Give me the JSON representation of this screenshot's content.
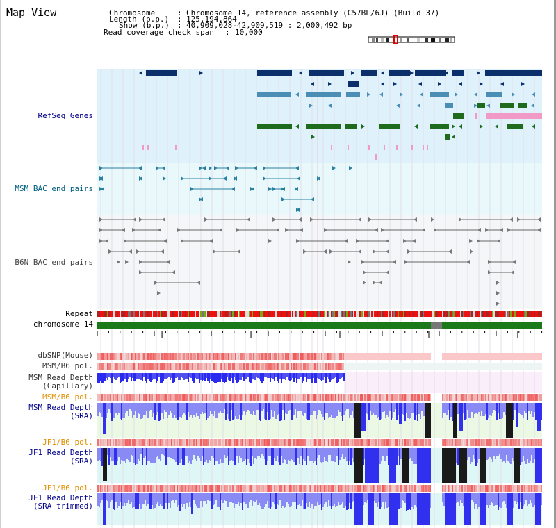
{
  "header": {
    "title": "Map View",
    "chromosome_key": "Chromosome",
    "chromosome_value": "Chromosome 14, reference assembly (C57BL/6J) (Build 37)",
    "length_key": "Length (b.p.)",
    "length_value": "125,194,864",
    "show_key": "Show (b.p.)",
    "show_value": "40,909,028-42,909,519 : 2,000,492 bp",
    "coverage_key": "Read coverage check span",
    "coverage_value": "10,000"
  },
  "tracks": {
    "refseq": "RefSeq Genes",
    "msm_bac": "MSM BAC end pairs",
    "b6n_bac": "B6N BAC end pairs",
    "repeat": "Repeat",
    "chromosome": "chromosome 14",
    "dbsnp": "dbSNP(Mouse)",
    "msm_b6_pol": "MSM/B6 pol.",
    "msm_read_depth_cap_1": "MSM Read Depth",
    "msm_read_depth_cap_2": "(Capillary)",
    "msm_b6_pol_2": "MSM/B6 pol.",
    "msm_read_depth_sra_1": "MSM Read Depth",
    "msm_read_depth_sra_2": "(SRA)",
    "jf1_b6_pol": "JF1/B6 pol.",
    "jf1_read_depth_sra_1": "JF1 Read Depth",
    "jf1_read_depth_sra_2": "(SRA)",
    "jf1_b6_pol_2": "JF1/B6 pol.",
    "jf1_read_depth_trim_1": "JF1 Read Depth",
    "jf1_read_depth_trim_2": "(SRA trimmed)"
  },
  "axis": {
    "view_start": 40909028,
    "view_end": 42909519,
    "ticks": [
      "41200000",
      "41600000",
      "42000000",
      "42400000",
      "42800000"
    ],
    "tick_values": [
      41200000,
      41600000,
      42000000,
      42400000,
      42800000
    ]
  },
  "colors": {
    "refseq_bg": "#dff1fb",
    "bac_bg": "#e8f8fb",
    "gene_dark": "#0b2f6b",
    "gene_mid": "#4a8db5",
    "gene_green": "#1e6b1e",
    "gene_pink": "#f29ac6",
    "chromosome": "#1a7a1a",
    "depth_blue": "#3030ee",
    "depth_light": "#8a8af5",
    "pol_red": "#f06262",
    "label_blue": "#00008b",
    "label_teal": "#006080",
    "label_orange": "#e09000"
  }
}
